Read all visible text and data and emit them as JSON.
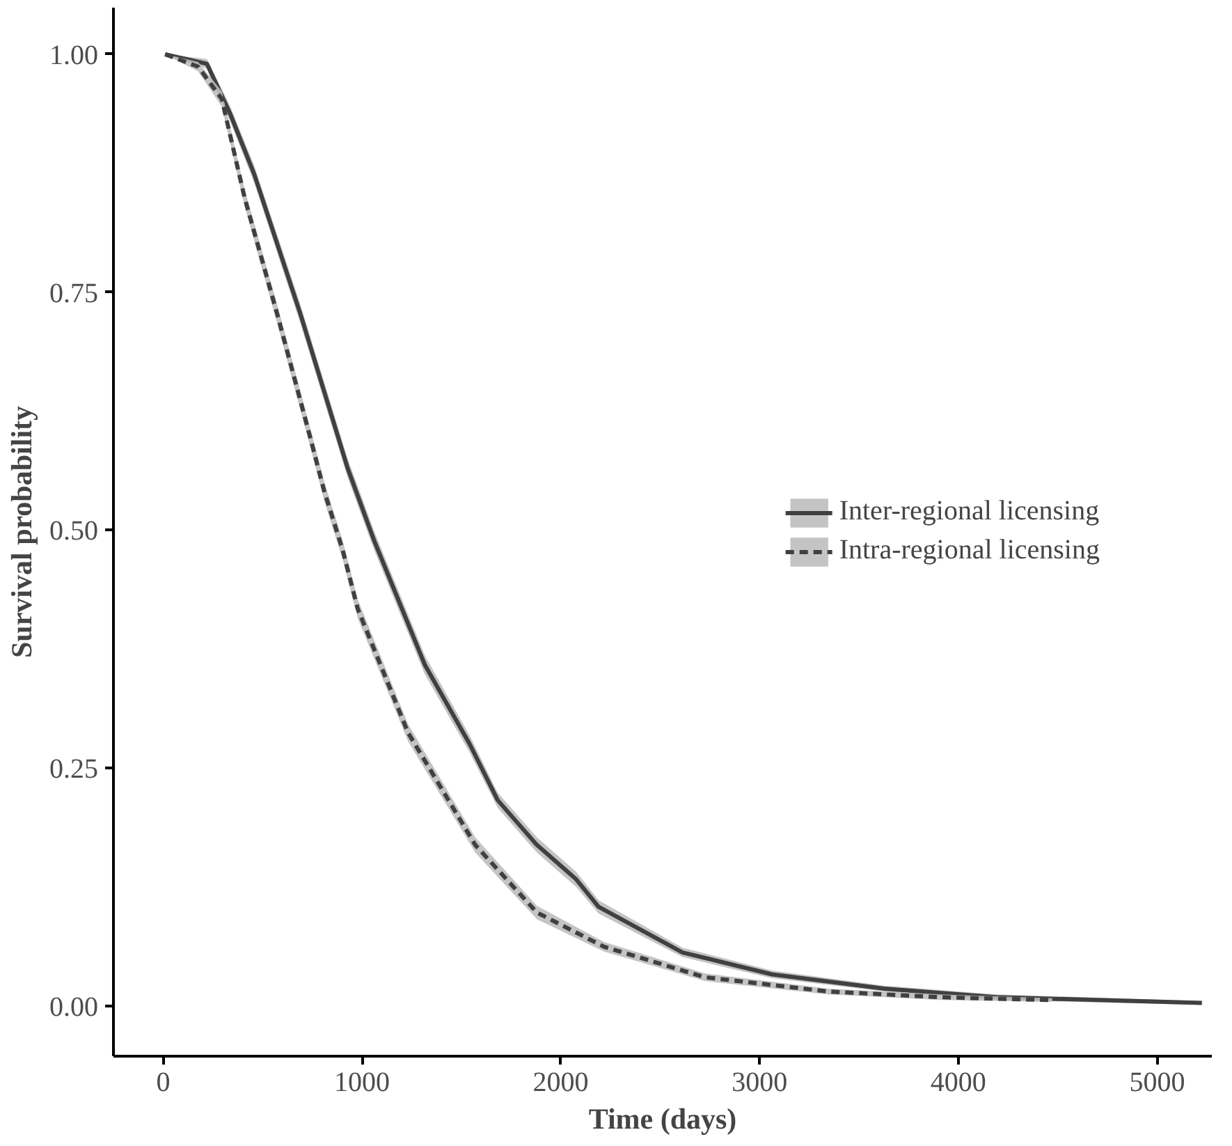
{
  "chart_data": {
    "type": "line",
    "xlabel": "Time (days)",
    "ylabel": "Survival probability",
    "xlim": [
      -250,
      5275
    ],
    "xticks": [
      0,
      1000,
      2000,
      3000,
      4000,
      5000
    ],
    "ylim": [
      -0.053,
      1.049
    ],
    "yticks": [
      {
        "value": 0,
        "label": "0.00"
      },
      {
        "value": 0.25,
        "label": "0.25"
      },
      {
        "value": 0.5,
        "label": "0.50"
      },
      {
        "value": 0.75,
        "label": "0.75"
      },
      {
        "value": 1,
        "label": "1.00"
      }
    ],
    "grid": false,
    "legend": "right",
    "marker": "none",
    "series": [
      {
        "name": "Inter-regional licensing",
        "color": "#404040",
        "line_style": "solid",
        "x": [
          10,
          220,
          336,
          458,
          692,
          928,
          1063,
          1317,
          1542,
          1683,
          1880,
          2077,
          2190,
          2613,
          3063,
          3627,
          4190,
          5225
        ],
        "values": [
          1.0,
          0.99,
          0.938,
          0.874,
          0.726,
          0.565,
          0.488,
          0.358,
          0.275,
          0.216,
          0.169,
          0.133,
          0.104,
          0.056,
          0.033,
          0.018,
          0.009,
          0.003
        ],
        "lower": [
          1.0,
          0.985,
          0.93,
          0.865,
          0.716,
          0.555,
          0.478,
          0.348,
          0.266,
          0.208,
          0.161,
          0.125,
          0.097,
          0.051,
          0.029,
          0.015,
          0.006,
          0.001
        ],
        "upper": [
          1.0,
          0.995,
          0.946,
          0.883,
          0.736,
          0.575,
          0.498,
          0.368,
          0.284,
          0.224,
          0.177,
          0.141,
          0.111,
          0.061,
          0.037,
          0.021,
          0.012,
          0.005
        ]
      },
      {
        "name": "Intra-regional licensing",
        "color": "#404040",
        "line_style": "dashed",
        "x": [
          10,
          176,
          295,
          410,
          575,
          739,
          810,
          903,
          979,
          1232,
          1570,
          1880,
          2218,
          2725,
          3345,
          3908,
          4472
        ],
        "values": [
          1.0,
          0.987,
          0.953,
          0.849,
          0.726,
          0.598,
          0.541,
          0.479,
          0.417,
          0.287,
          0.169,
          0.098,
          0.062,
          0.03,
          0.015,
          0.009,
          0.006
        ],
        "lower": [
          1.0,
          0.982,
          0.945,
          0.84,
          0.716,
          0.588,
          0.531,
          0.469,
          0.407,
          0.278,
          0.161,
          0.091,
          0.057,
          0.026,
          0.012,
          0.006,
          0.004
        ],
        "upper": [
          1.0,
          0.992,
          0.961,
          0.858,
          0.736,
          0.608,
          0.551,
          0.489,
          0.427,
          0.296,
          0.177,
          0.105,
          0.067,
          0.034,
          0.018,
          0.012,
          0.008
        ]
      }
    ]
  }
}
